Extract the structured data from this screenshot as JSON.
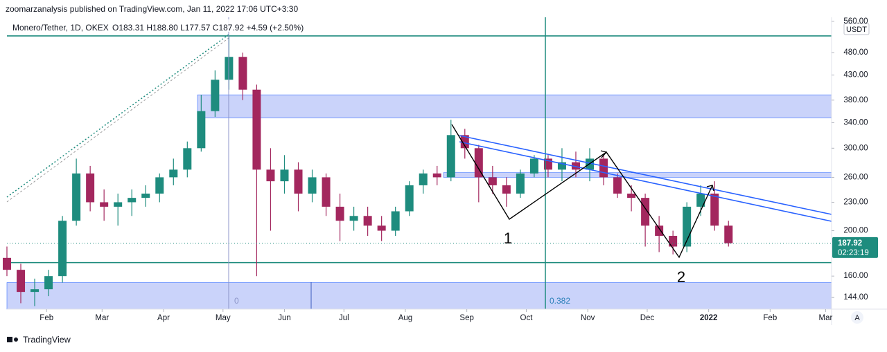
{
  "header": {
    "publisher": "zoomarzanalysis published on TradingView.com, Jan 11, 2022 17:06 UTC+3:30"
  },
  "chart_data": {
    "type": "candlestick",
    "title": "Monero/Tether, 1D, OKEX",
    "subtitle": "O183.31 H188.80 L177.57 C187.92 +4.59 (+2.50%)",
    "currency": "USDT",
    "last_price": {
      "value": 187.92,
      "label": "187.92"
    },
    "countdown": "02:23:19",
    "x": [
      11,
      18,
      25,
      32,
      39,
      46,
      53,
      60,
      67,
      74,
      81,
      88,
      95,
      102,
      109,
      116,
      123,
      130,
      137,
      144,
      151,
      158,
      165,
      172,
      179,
      186,
      193,
      200,
      207,
      214,
      221,
      228,
      235,
      242,
      249,
      256,
      263,
      270,
      277,
      284,
      291,
      298,
      305,
      312,
      319,
      326,
      333,
      340,
      347,
      354,
      361,
      368,
      375
    ],
    "open": [
      175,
      165,
      148,
      150,
      160,
      210,
      265,
      230,
      225,
      230,
      235,
      240,
      260,
      270,
      300,
      360,
      420,
      470,
      400,
      270,
      255,
      270,
      240,
      260,
      225,
      210,
      215,
      205,
      200,
      220,
      250,
      265,
      260,
      320,
      300,
      260,
      250,
      240,
      265,
      285,
      270,
      280,
      270,
      285,
      260,
      240,
      235,
      205,
      195,
      185,
      225,
      240,
      205
    ],
    "high": [
      185,
      170,
      158,
      165,
      215,
      285,
      275,
      245,
      240,
      245,
      250,
      265,
      285,
      310,
      390,
      440,
      520,
      480,
      410,
      300,
      290,
      280,
      270,
      265,
      240,
      225,
      225,
      215,
      225,
      255,
      270,
      275,
      345,
      330,
      305,
      275,
      260,
      270,
      290,
      290,
      300,
      295,
      300,
      290,
      265,
      250,
      240,
      215,
      200,
      230,
      250,
      255,
      210
    ],
    "low": [
      160,
      140,
      138,
      145,
      155,
      205,
      220,
      210,
      205,
      215,
      225,
      230,
      250,
      260,
      295,
      350,
      400,
      380,
      160,
      200,
      240,
      220,
      230,
      215,
      190,
      200,
      195,
      190,
      195,
      215,
      240,
      250,
      255,
      285,
      230,
      240,
      225,
      235,
      260,
      260,
      255,
      260,
      255,
      250,
      235,
      220,
      185,
      180,
      178,
      180,
      215,
      200,
      185
    ],
    "close": [
      165,
      148,
      150,
      160,
      210,
      265,
      230,
      225,
      230,
      235,
      240,
      260,
      270,
      300,
      360,
      420,
      470,
      400,
      270,
      255,
      270,
      240,
      260,
      225,
      210,
      215,
      205,
      200,
      220,
      250,
      265,
      260,
      320,
      300,
      260,
      250,
      240,
      265,
      285,
      270,
      280,
      270,
      285,
      260,
      240,
      235,
      205,
      195,
      185,
      225,
      240,
      205,
      188
    ],
    "up_color": "#1e8c7e",
    "down_color": "#a3275e",
    "zones": [
      [
        348,
        390
      ],
      [
        260,
        266
      ],
      [
        136,
        155
      ]
    ],
    "hlines": [
      521,
      171
    ],
    "annotations": [
      "1",
      "2",
      "0",
      "0.382"
    ],
    "xlim": [
      11,
      427
    ],
    "xticks": [
      {
        "value": 31,
        "label": "Feb"
      },
      {
        "value": 59,
        "label": "Mar"
      },
      {
        "value": 90,
        "label": "Apr"
      },
      {
        "value": 120,
        "label": "May"
      },
      {
        "value": 151,
        "label": "Jun"
      },
      {
        "value": 181,
        "label": "Jul"
      },
      {
        "value": 212,
        "label": "Aug"
      },
      {
        "value": 243,
        "label": "Sep"
      },
      {
        "value": 273,
        "label": "Oct"
      },
      {
        "value": 304,
        "label": "Nov"
      },
      {
        "value": 334,
        "label": "Dec"
      },
      {
        "value": 365,
        "label": "2022"
      },
      {
        "value": 396,
        "label": "Feb"
      },
      {
        "value": 424,
        "label": "Mar"
      }
    ],
    "ylim": [
      136,
      571
    ],
    "log_scale": true,
    "yticks": [
      {
        "value": 560,
        "label": "560.00"
      },
      {
        "value": 480,
        "label": "480.00"
      },
      {
        "value": 430,
        "label": "430.00"
      },
      {
        "value": 380,
        "label": "380.00"
      },
      {
        "value": 340,
        "label": "340.00"
      },
      {
        "value": 300,
        "label": "300.00"
      },
      {
        "value": 260,
        "label": "260.00"
      },
      {
        "value": 230,
        "label": "230.00"
      },
      {
        "value": 200,
        "label": "200.00"
      },
      {
        "value": 160,
        "label": "160.00"
      },
      {
        "value": 144,
        "label": "144.00"
      }
    ],
    "scale_mode": "A"
  },
  "footer": {
    "brand": "TradingView"
  }
}
